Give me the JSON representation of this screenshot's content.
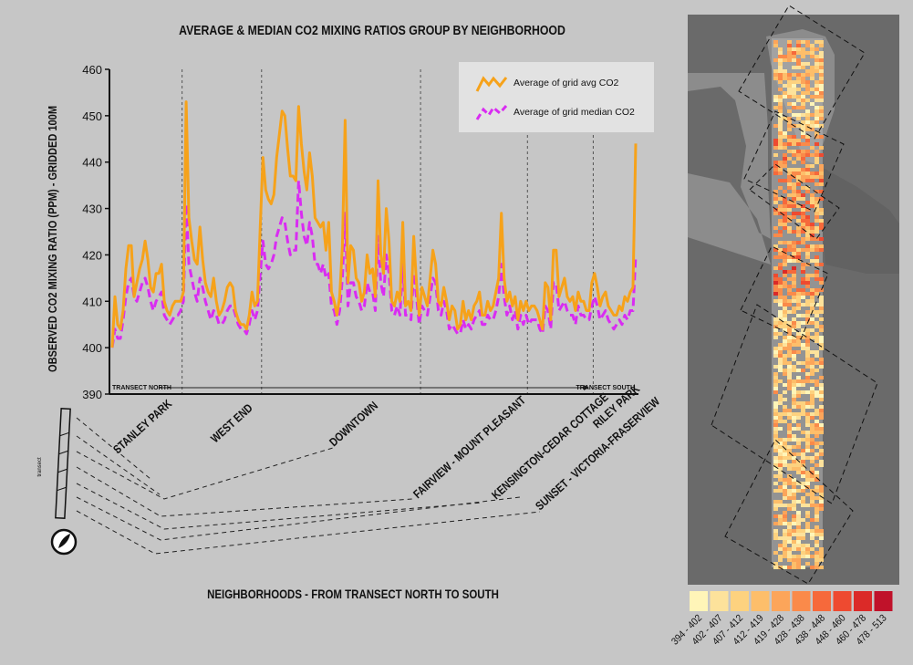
{
  "chart_data": {
    "type": "line",
    "title": "AVERAGE & MEDIAN CO2 MIXING RATIOS GROUP BY NEIGHBORHOOD",
    "xlabel": "NEIGHBORHOODS - FROM TRANSECT NORTH TO SOUTH",
    "ylabel": "OBSERVED CO2 MIXING RATIO (PPM) - GRIDDED 100M",
    "ylim": [
      390,
      460
    ],
    "yticks": [
      390,
      400,
      410,
      420,
      430,
      440,
      450,
      460
    ],
    "ytick_labels": [
      "390",
      "400",
      "410",
      "420",
      "430",
      "440",
      "450",
      "460"
    ],
    "grid": false,
    "legend_position": "top-right",
    "transect_north_label": "TRANSECT NORTH",
    "transect_south_label": "TRANSECT SOUTH",
    "neighborhoods": [
      "STANLEY PARK",
      "WEST END",
      "DOWNTOWN",
      "FAIRVIEW - MOUNT PLEASANT",
      "KENSINGTON-CEDAR COTTAGE",
      "RILEY PARK",
      "SUNSET - VICTORIA-FRASERVIEW"
    ],
    "series": [
      {
        "name": "Average of grid avg CO2",
        "color": "#f6a21a",
        "values": [
          400,
          411,
          405,
          404,
          408,
          417,
          422,
          422,
          411,
          414,
          417,
          419,
          423,
          419,
          413,
          412,
          416,
          416,
          418,
          410,
          408,
          407,
          409,
          410,
          410,
          410,
          412,
          453,
          428,
          423,
          419,
          418,
          426,
          419,
          414,
          412,
          411,
          415,
          410,
          407,
          408,
          410,
          413,
          414,
          413,
          408,
          406,
          405,
          405,
          404,
          407,
          412,
          409,
          410,
          426,
          441,
          434,
          432,
          431,
          433,
          441,
          446,
          451,
          450,
          443,
          437,
          437,
          436,
          452,
          444,
          438,
          434,
          442,
          437,
          428,
          427,
          426,
          427,
          421,
          427,
          412,
          410,
          407,
          411,
          422,
          449,
          414,
          422,
          421,
          415,
          414,
          410,
          412,
          420,
          416,
          417,
          411,
          436,
          420,
          416,
          430,
          423,
          410,
          409,
          412,
          410,
          427,
          409,
          410,
          408,
          424,
          414,
          407,
          413,
          411,
          409,
          415,
          421,
          418,
          410,
          409,
          413,
          410,
          406,
          409,
          408,
          404,
          405,
          410,
          406,
          408,
          406,
          409,
          410,
          412,
          407,
          407,
          410,
          408,
          409,
          412,
          415,
          429,
          415,
          410,
          412,
          409,
          411,
          406,
          410,
          408,
          410,
          408,
          409,
          409,
          408,
          406,
          404,
          414,
          413,
          406,
          421,
          421,
          411,
          413,
          415,
          411,
          410,
          411,
          408,
          412,
          410,
          410,
          408,
          408,
          414,
          416,
          413,
          409,
          411,
          412,
          409,
          408,
          407,
          407,
          409,
          408,
          411,
          410,
          412,
          413,
          444
        ],
        "markers": false
      },
      {
        "name": "Average of grid median CO2",
        "color": "#d92cf2",
        "values": [
          400,
          404,
          402,
          402,
          406,
          411,
          414,
          415,
          411,
          410,
          412,
          414,
          415,
          413,
          410,
          408,
          410,
          411,
          412,
          407,
          406,
          405,
          406,
          407,
          407,
          408,
          410,
          431,
          418,
          415,
          412,
          410,
          415,
          413,
          410,
          408,
          406,
          408,
          407,
          405,
          405,
          406,
          408,
          409,
          409,
          407,
          405,
          404,
          404,
          403,
          405,
          408,
          406,
          408,
          416,
          423,
          418,
          417,
          418,
          420,
          424,
          426,
          428,
          427,
          423,
          420,
          421,
          421,
          436,
          429,
          424,
          422,
          427,
          424,
          418,
          418,
          416,
          418,
          415,
          416,
          409,
          408,
          405,
          408,
          415,
          429,
          409,
          414,
          414,
          411,
          410,
          408,
          409,
          414,
          412,
          412,
          408,
          424,
          414,
          411,
          420,
          416,
          408,
          407,
          409,
          407,
          418,
          407,
          407,
          406,
          416,
          411,
          405,
          409,
          408,
          407,
          411,
          415,
          414,
          408,
          407,
          410,
          408,
          404,
          405,
          404,
          403,
          403,
          406,
          404,
          405,
          404,
          406,
          407,
          408,
          405,
          405,
          407,
          406,
          406,
          408,
          411,
          418,
          411,
          407,
          409,
          406,
          408,
          404,
          407,
          405,
          407,
          405,
          406,
          406,
          406,
          404,
          403,
          409,
          408,
          404,
          414,
          414,
          408,
          409,
          410,
          408,
          407,
          407,
          405,
          409,
          407,
          407,
          406,
          406,
          409,
          411,
          409,
          406,
          407,
          408,
          406,
          405,
          404,
          405,
          406,
          405,
          407,
          406,
          408,
          408,
          420
        ],
        "markers": false
      }
    ],
    "neighborhood_boundaries_after_index": [
      25,
      54,
      112,
      151,
      175
    ],
    "map": {
      "legend_title": "",
      "color_classes": [
        {
          "label": "394 - 402",
          "color": "#fff5b8"
        },
        {
          "label": "402 - 407",
          "color": "#fde29b"
        },
        {
          "label": "407 - 412",
          "color": "#fdd27f"
        },
        {
          "label": "412 - 419",
          "color": "#fdbe6a"
        },
        {
          "label": "419 - 428",
          "color": "#fca55a"
        },
        {
          "label": "428 - 438",
          "color": "#fa8a4a"
        },
        {
          "label": "438 - 448",
          "color": "#f6693b"
        },
        {
          "label": "448 - 460",
          "color": "#ee4a30"
        },
        {
          "label": "460 - 478",
          "color": "#db2a28"
        },
        {
          "label": "478 - 513",
          "color": "#c0122a"
        }
      ]
    },
    "inset_label": "transect"
  }
}
